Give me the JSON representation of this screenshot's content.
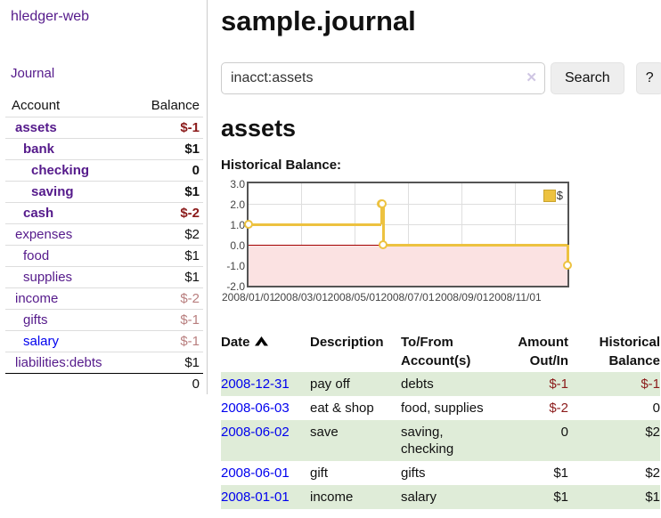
{
  "colors": {
    "purple_link": "#551a8b",
    "blue_link": "#0000ee",
    "negative_strong": "#8b1a1a",
    "negative_dim": "#b87e7e",
    "row_green": "#dfecd8",
    "chart_gold": "#edc240",
    "chart_pink": "#fbe2e2",
    "zero_line": "#a40000",
    "grid_gray": "#dedede",
    "chart_border": "#545454",
    "axis_text": "#444444"
  },
  "app": {
    "title": "hledger-web",
    "nav_journal": "Journal"
  },
  "sidebar": {
    "columns": {
      "account": "Account",
      "balance": "Balance"
    },
    "accounts": [
      {
        "name": "assets",
        "balance": "$-1",
        "depth": 1,
        "bold": true,
        "name_color": "purple",
        "balance_color": "neg"
      },
      {
        "name": "bank",
        "balance": "$1",
        "depth": 2,
        "bold": true,
        "name_color": "purple",
        "balance_color": "black"
      },
      {
        "name": "checking",
        "balance": "0",
        "depth": 3,
        "bold": true,
        "name_color": "purple",
        "balance_color": "black"
      },
      {
        "name": "saving",
        "balance": "$1",
        "depth": 3,
        "bold": true,
        "name_color": "purple",
        "balance_color": "black"
      },
      {
        "name": "cash",
        "balance": "$-2",
        "depth": 2,
        "bold": true,
        "name_color": "purple",
        "balance_color": "neg"
      },
      {
        "name": "expenses",
        "balance": "$2",
        "depth": 1,
        "bold": false,
        "name_color": "purple",
        "balance_color": "black"
      },
      {
        "name": "food",
        "balance": "$1",
        "depth": 2,
        "bold": false,
        "name_color": "purple",
        "balance_color": "black"
      },
      {
        "name": "supplies",
        "balance": "$1",
        "depth": 2,
        "bold": false,
        "name_color": "purple",
        "balance_color": "black"
      },
      {
        "name": "income",
        "balance": "$-2",
        "depth": 1,
        "bold": false,
        "name_color": "purple",
        "balance_color": "dimneg"
      },
      {
        "name": "gifts",
        "balance": "$-1",
        "depth": 2,
        "bold": false,
        "name_color": "purple",
        "balance_color": "dimneg"
      },
      {
        "name": "salary",
        "balance": "$-1",
        "depth": 2,
        "bold": false,
        "name_color": "blue",
        "balance_color": "dimneg"
      },
      {
        "name": "liabilities:debts",
        "balance": "$1",
        "depth": 1,
        "bold": false,
        "name_color": "purple",
        "balance_color": "black"
      }
    ],
    "total": "0"
  },
  "main": {
    "title": "sample.journal",
    "search": {
      "value": "inacct:assets",
      "clear_icon": "✕",
      "search_button": "Search",
      "help_button": "?"
    },
    "account_heading": "assets",
    "chart_heading": "Historical Balance:"
  },
  "chart_data": {
    "type": "line",
    "step": true,
    "title": "Historical Balance",
    "series": [
      {
        "name": "$",
        "x": [
          "2008-01-01",
          "2008-06-01",
          "2008-06-02",
          "2008-06-03",
          "2008-12-31"
        ],
        "values": [
          1,
          2,
          2,
          0,
          -1
        ]
      }
    ],
    "xlim": [
      "2008-01-01",
      "2008-12-31"
    ],
    "ylim": [
      -2,
      3
    ],
    "yticks": [
      "3.0",
      "2.0",
      "1.0",
      "0.0",
      "-1.0",
      "-2.0"
    ],
    "xticks": [
      "2008/01/01",
      "2008/03/01",
      "2008/05/01",
      "2008/07/01",
      "2008/09/01",
      "2008/11/01"
    ],
    "grid": true,
    "legend_position": "top-right",
    "negative_region_shaded": true
  },
  "table": {
    "headers": {
      "date": "Date",
      "description": "Description",
      "accounts": "To/From Account(s)",
      "amount": "Amount Out/In",
      "balance": "Historical Balance"
    },
    "sort": {
      "column": "date",
      "direction": "asc",
      "icon": "chevron-up-icon"
    },
    "rows": [
      {
        "date": "2008-12-31",
        "description": "pay off",
        "accounts": "debts",
        "amount": "$-1",
        "amount_neg": true,
        "balance": "$-1",
        "balance_neg": true
      },
      {
        "date": "2008-06-03",
        "description": "eat & shop",
        "accounts": "food, supplies",
        "amount": "$-2",
        "amount_neg": true,
        "balance": "0",
        "balance_neg": false
      },
      {
        "date": "2008-06-02",
        "description": "save",
        "accounts": "saving, checking",
        "amount": "0",
        "amount_neg": false,
        "balance": "$2",
        "balance_neg": false
      },
      {
        "date": "2008-06-01",
        "description": "gift",
        "accounts": "gifts",
        "amount": "$1",
        "amount_neg": false,
        "balance": "$2",
        "balance_neg": false
      },
      {
        "date": "2008-01-01",
        "description": "income",
        "accounts": "salary",
        "amount": "$1",
        "amount_neg": false,
        "balance": "$1",
        "balance_neg": false
      }
    ]
  }
}
